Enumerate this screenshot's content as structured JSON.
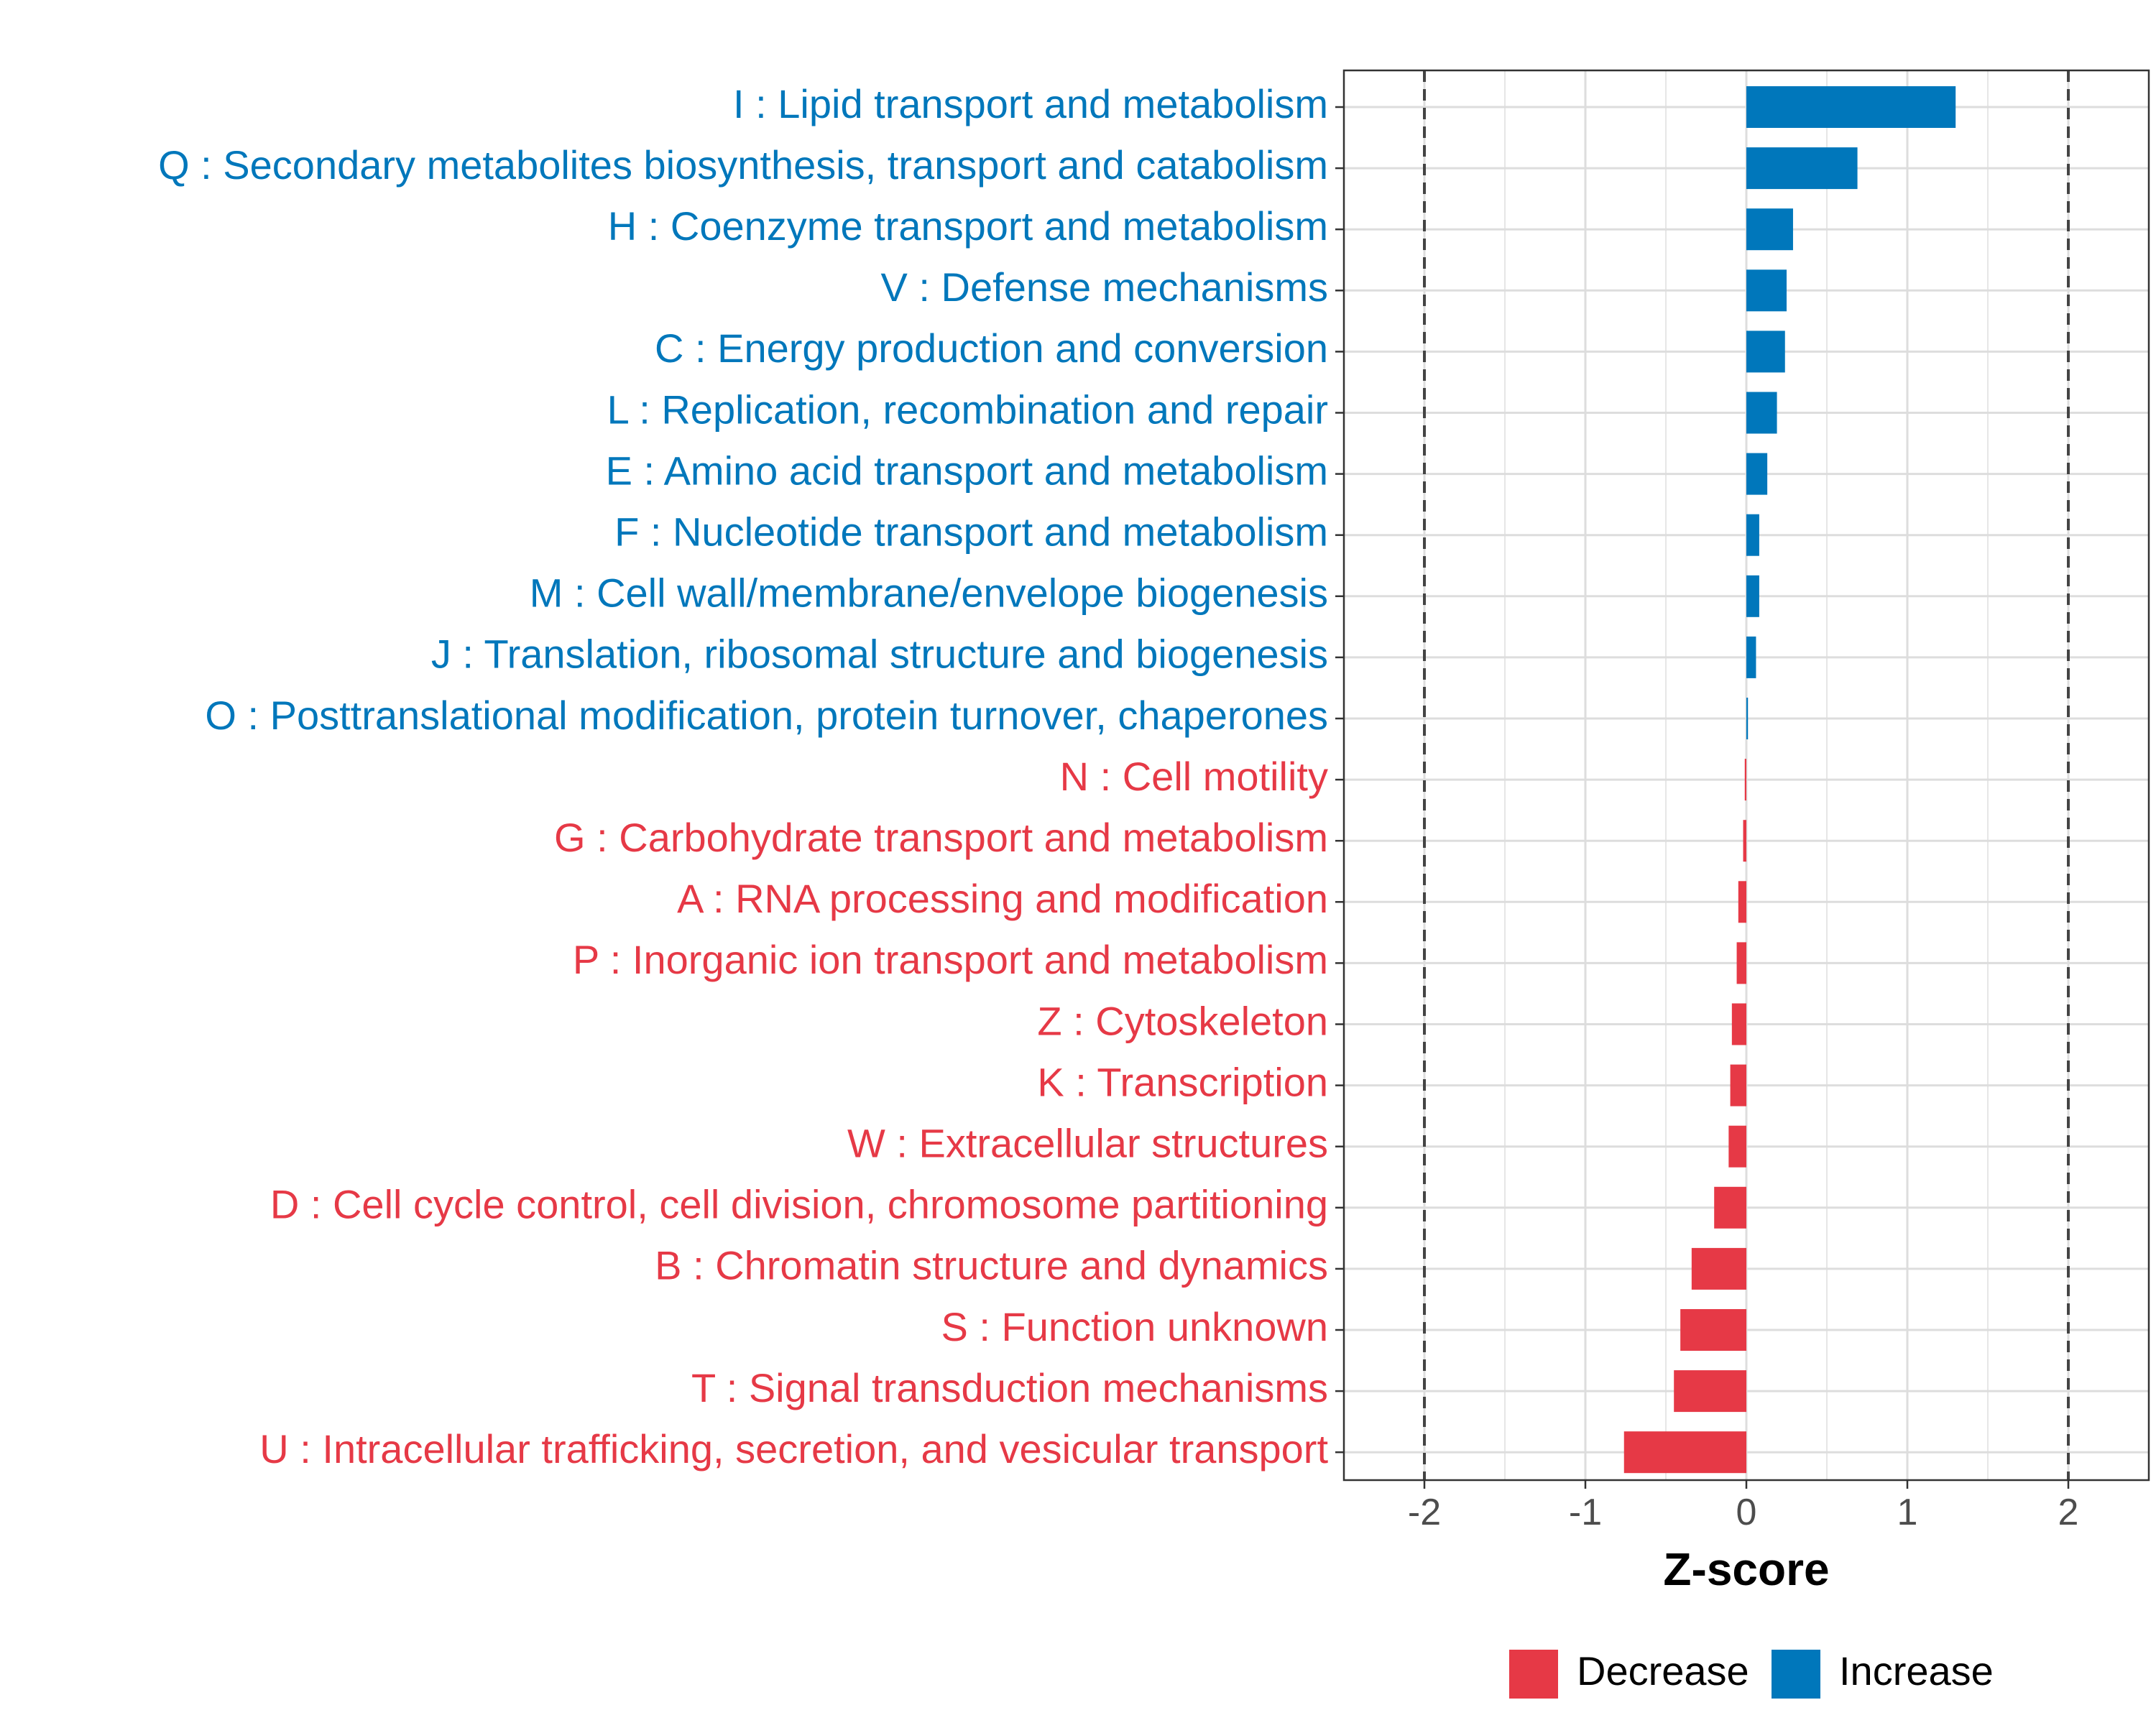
{
  "chart_data": {
    "type": "bar",
    "orientation": "horizontal",
    "title": "",
    "xlabel": "Z-score",
    "ylabel": "",
    "xlim": [
      -2.5,
      2.5
    ],
    "x_ticks": [
      -2,
      -1,
      0,
      1,
      2
    ],
    "x_tick_labels": [
      "-2",
      "-1",
      "0",
      "1",
      "2"
    ],
    "reference_lines": [
      -2,
      2
    ],
    "grid": true,
    "categories": [
      "I : Lipid transport and metabolism",
      "Q : Secondary metabolites biosynthesis, transport and catabolism",
      "H : Coenzyme transport and metabolism",
      "V : Defense mechanisms",
      "C : Energy production and conversion",
      "L : Replication, recombination and repair",
      "E : Amino acid transport and metabolism",
      "F : Nucleotide transport and metabolism",
      "M : Cell wall/membrane/envelope biogenesis",
      "J : Translation, ribosomal structure and biogenesis",
      "O : Posttranslational modification, protein turnover, chaperones",
      "N : Cell motility",
      "G : Carbohydrate transport and metabolism",
      "A : RNA processing and modification",
      "P : Inorganic ion transport and metabolism",
      "Z : Cytoskeleton",
      "K : Transcription",
      "W : Extracellular structures",
      "D : Cell cycle control, cell division, chromosome partitioning",
      "B : Chromatin structure and dynamics",
      "S : Function unknown",
      "T : Signal transduction mechanisms",
      "U : Intracellular trafficking, secretion, and vesicular transport"
    ],
    "values": [
      1.3,
      0.69,
      0.29,
      0.25,
      0.24,
      0.19,
      0.13,
      0.08,
      0.08,
      0.06,
      0.01,
      -0.01,
      -0.02,
      -0.05,
      -0.06,
      -0.09,
      -0.1,
      -0.11,
      -0.2,
      -0.34,
      -0.41,
      -0.45,
      -0.76
    ],
    "groups": [
      "Increase",
      "Increase",
      "Increase",
      "Increase",
      "Increase",
      "Increase",
      "Increase",
      "Increase",
      "Increase",
      "Increase",
      "Increase",
      "Decrease",
      "Decrease",
      "Decrease",
      "Decrease",
      "Decrease",
      "Decrease",
      "Decrease",
      "Decrease",
      "Decrease",
      "Decrease",
      "Decrease",
      "Decrease"
    ],
    "legend": {
      "position": "bottom",
      "entries": [
        {
          "label": "Decrease",
          "color": "#e63946"
        },
        {
          "label": "Increase",
          "color": "#0077bb"
        }
      ]
    },
    "colors": {
      "Decrease": "#e63946",
      "Increase": "#0077bb"
    }
  }
}
